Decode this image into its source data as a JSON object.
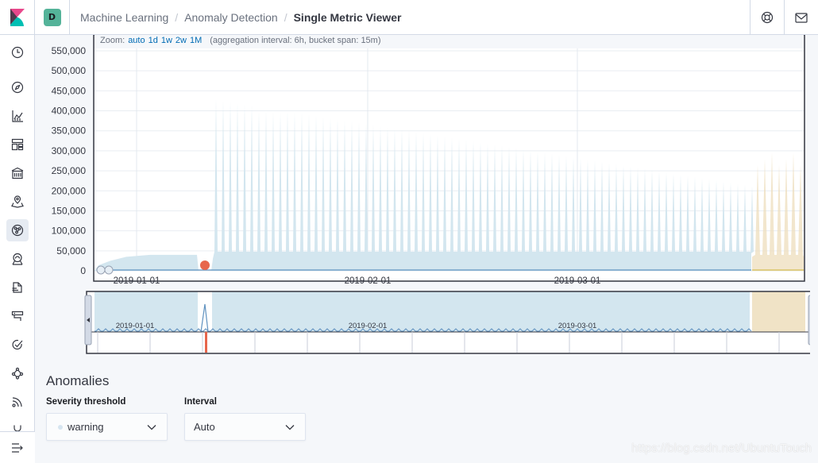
{
  "header": {
    "space_initial": "D",
    "breadcrumbs": [
      "Machine Learning",
      "Anomaly Detection",
      "Single Metric Viewer"
    ]
  },
  "zoom": {
    "label": "Zoom:",
    "options": [
      "auto",
      "1d",
      "1w",
      "2w",
      "1M"
    ],
    "interval_note": "(aggregation interval: 6h, bucket span: 15m)"
  },
  "chart_data": {
    "type": "area",
    "ylim": [
      0,
      550000
    ],
    "yticks": [
      "550,000",
      "500,000",
      "450,000",
      "400,000",
      "350,000",
      "300,000",
      "250,000",
      "200,000",
      "150,000",
      "100,000",
      "50,000",
      "0"
    ],
    "xticks": [
      "2019-01-01",
      "2019-02-01",
      "2019-03-01"
    ],
    "context_xticks": [
      "2019-01-01",
      "2019-02-01",
      "2019-03-01"
    ]
  },
  "anomalies": {
    "title": "Anomalies",
    "severity_label": "Severity threshold",
    "severity_value": "warning",
    "interval_label": "Interval",
    "interval_value": "Auto"
  },
  "watermark": "https://blog.csdn.net/UbuntuTouch",
  "colors": {
    "accent": "#006bb4",
    "area": "#d3e6ef",
    "line": "#6092c0",
    "forecast": "#ecdcb8",
    "anomaly": "#e7664c"
  }
}
